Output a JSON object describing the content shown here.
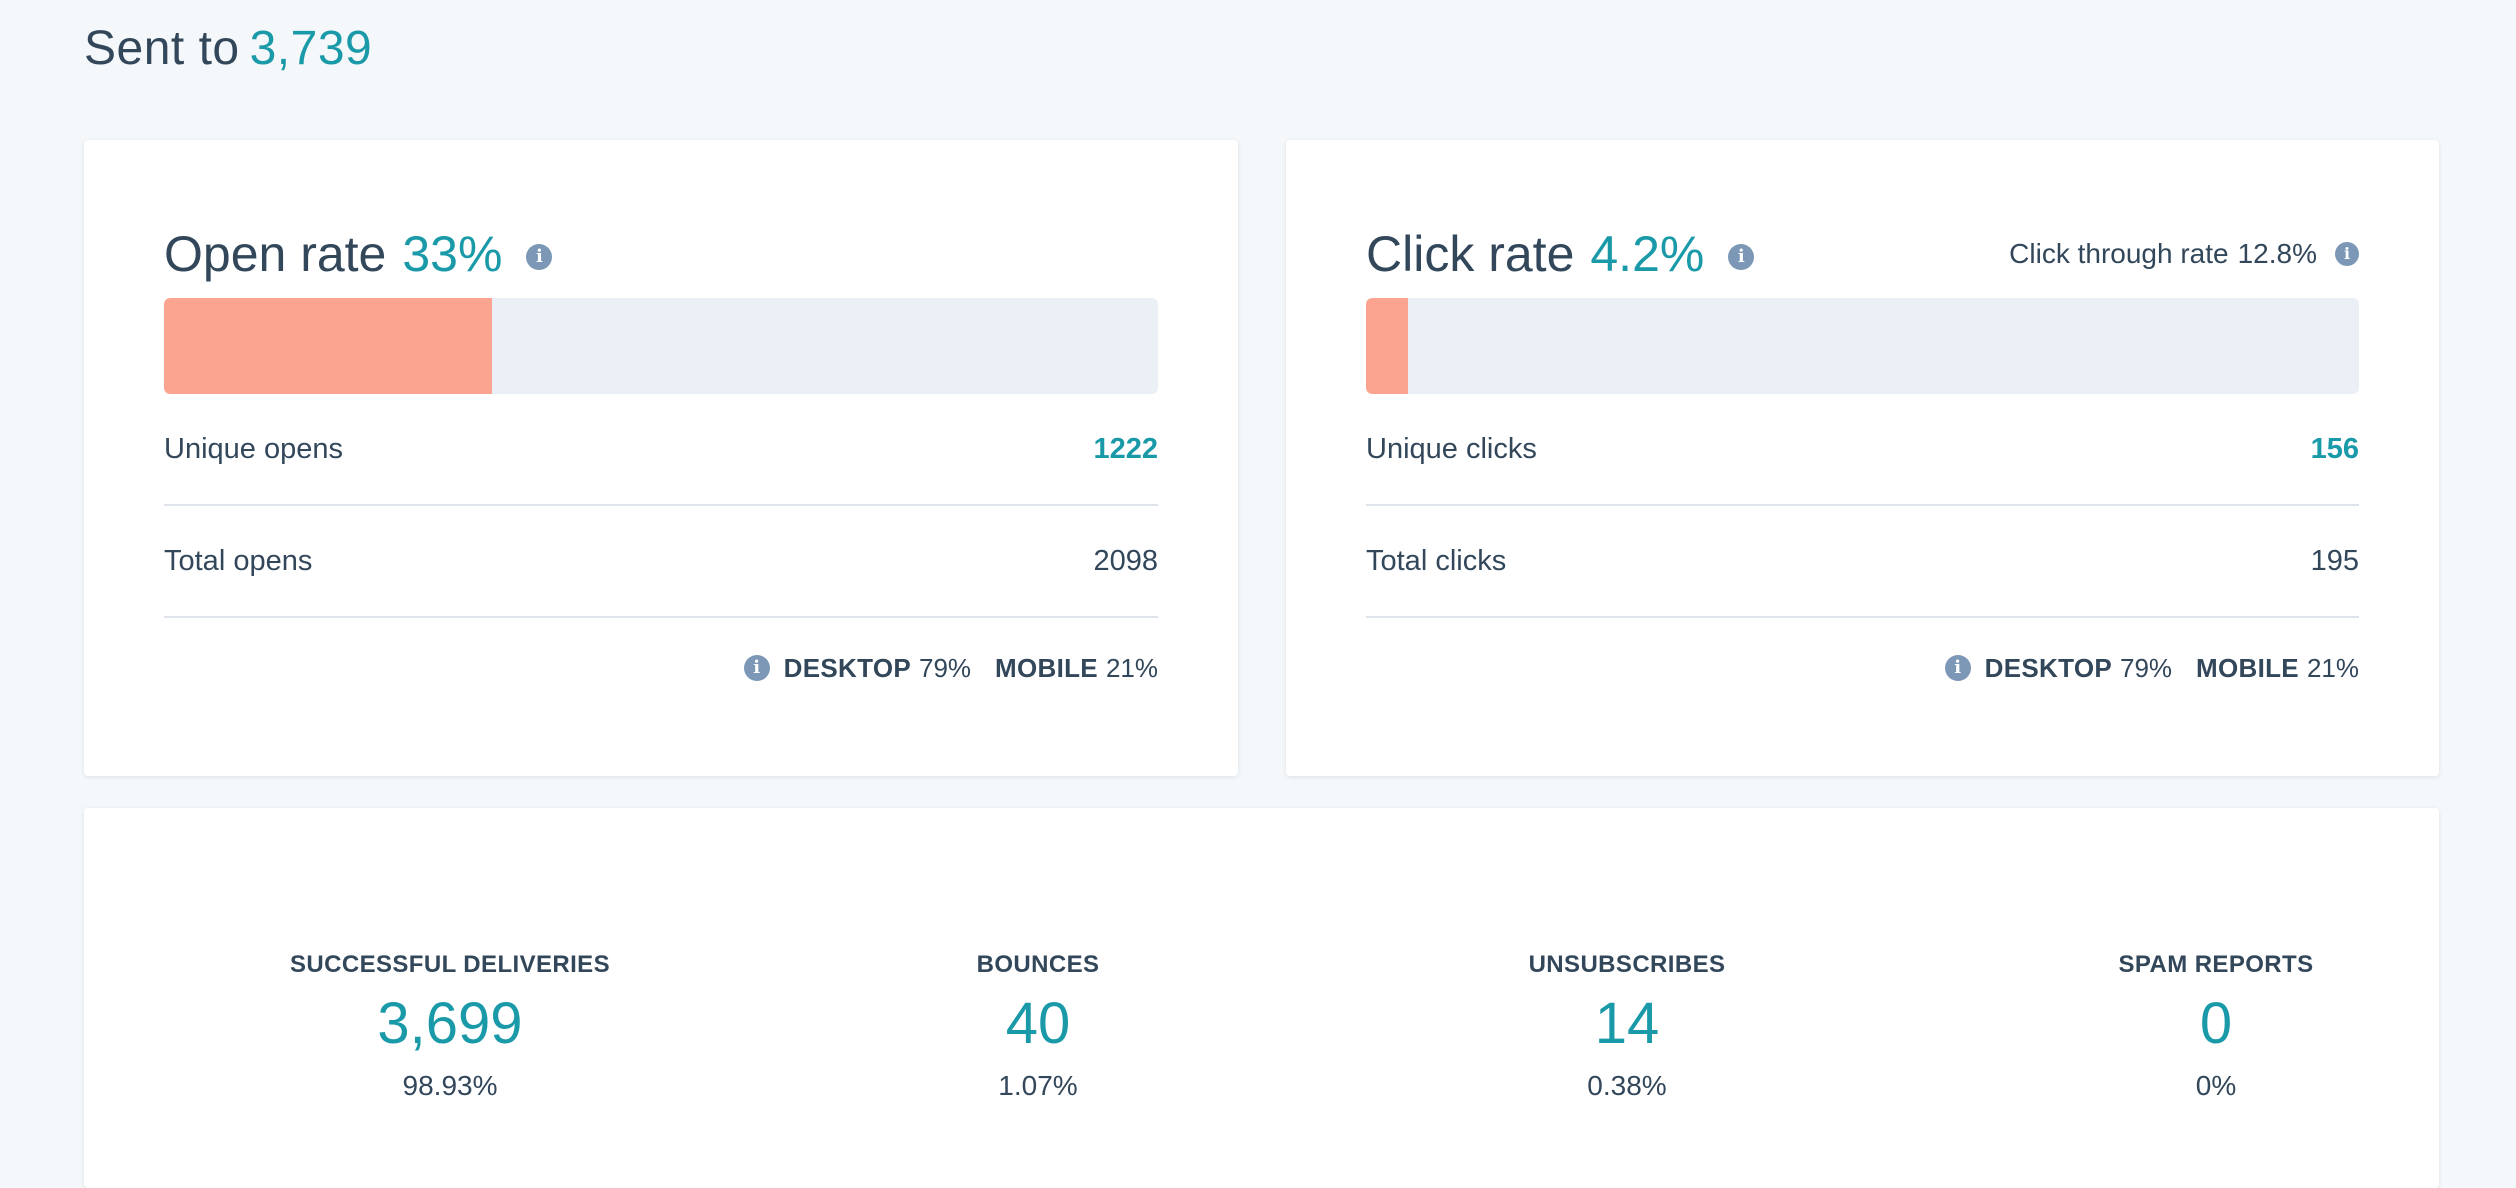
{
  "header": {
    "sent_label": "Sent to",
    "sent_value": "3,739"
  },
  "open_card": {
    "title": "Open rate",
    "rate": "33%",
    "rate_fraction": 0.33,
    "info_icon": "info-icon",
    "unique_label": "Unique opens",
    "unique_value": "1222",
    "total_label": "Total opens",
    "total_value": "2098",
    "desktop_label": "DESKTOP",
    "desktop_value": "79%",
    "mobile_label": "MOBILE",
    "mobile_value": "21%"
  },
  "click_card": {
    "title": "Click rate",
    "rate": "4.2%",
    "rate_fraction": 0.042,
    "info_icon": "info-icon",
    "ctr_label": "Click through rate",
    "ctr_value": "12.8%",
    "unique_label": "Unique clicks",
    "unique_value": "156",
    "total_label": "Total clicks",
    "total_value": "195",
    "desktop_label": "DESKTOP",
    "desktop_value": "79%",
    "mobile_label": "MOBILE",
    "mobile_value": "21%"
  },
  "delivery_stats": [
    {
      "label": "SUCCESSFUL DELIVERIES",
      "value": "3,699",
      "percent": "98.93%"
    },
    {
      "label": "BOUNCES",
      "value": "40",
      "percent": "1.07%"
    },
    {
      "label": "UNSUBSCRIBES",
      "value": "14",
      "percent": "0.38%"
    },
    {
      "label": "SPAM REPORTS",
      "value": "0",
      "percent": "0%"
    }
  ],
  "colors": {
    "accent": "#1a9aa8",
    "bar_fill": "#ff8f73",
    "bar_track": "#eaf0f6",
    "text": "#33475b",
    "page_bg": "#f5f8fa",
    "info_icon": "#7c98b6"
  }
}
